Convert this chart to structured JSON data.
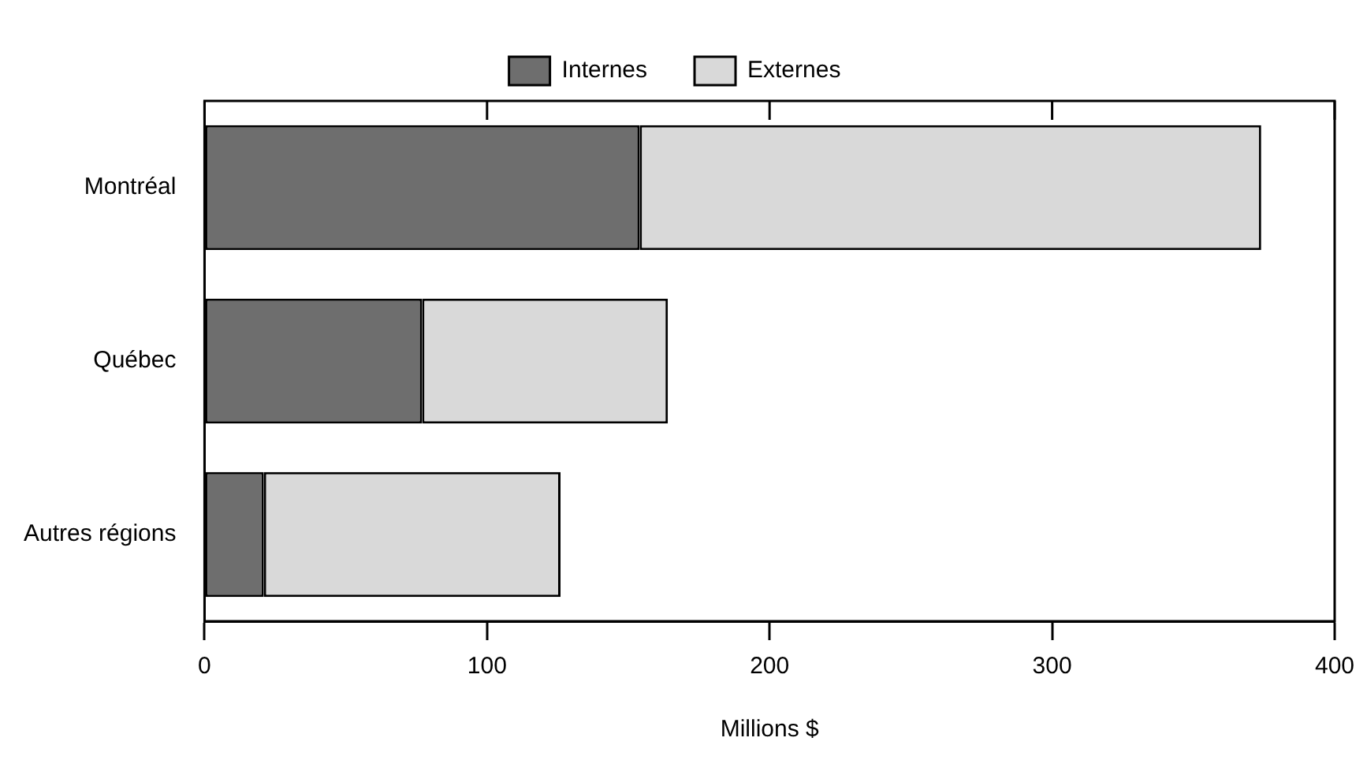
{
  "chart_data": {
    "type": "bar",
    "orientation": "horizontal",
    "stacked": true,
    "categories": [
      "Montréal",
      "Québec",
      "Autres régions"
    ],
    "series": [
      {
        "name": "Internes",
        "color": "#6e6e6e",
        "values": [
          154,
          77,
          21
        ]
      },
      {
        "name": "Externes",
        "color": "#d9d9d9",
        "values": [
          220,
          87,
          105
        ]
      }
    ],
    "xlabel": "Millions $",
    "xlim": [
      0,
      400
    ],
    "xticks": [
      0,
      100,
      200,
      300,
      400
    ],
    "grid": false,
    "legend": "top"
  }
}
